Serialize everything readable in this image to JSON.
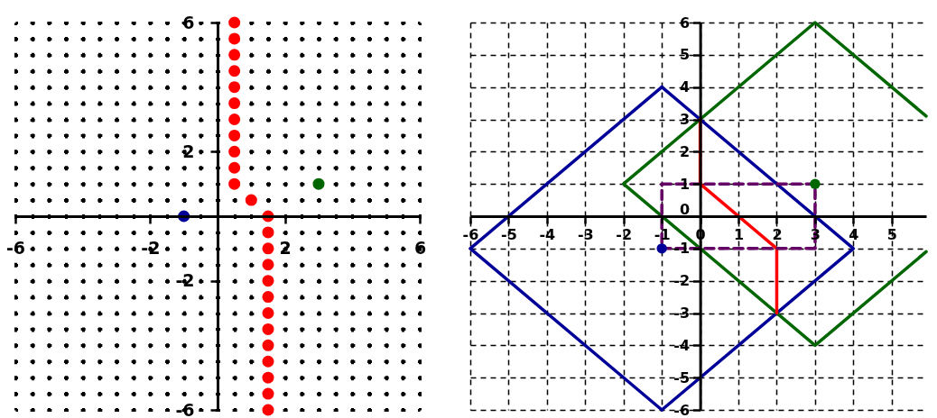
{
  "chart_data": [
    {
      "type": "scatter",
      "xlim": [
        -6,
        6
      ],
      "ylim": [
        -6,
        6
      ],
      "grid": true,
      "marker": "circle",
      "xticks": [
        -6,
        {
          "value": -5.5,
          "label": null
        },
        {
          "value": -5,
          "label": null
        },
        {
          "value": -4.5,
          "label": null
        },
        {
          "value": -4,
          "label": null
        },
        {
          "value": -3.5,
          "label": null
        },
        {
          "value": -3,
          "label": null
        },
        {
          "value": -2.5,
          "label": null
        },
        -2,
        {
          "value": -1.5,
          "label": null
        },
        {
          "value": -1,
          "label": null
        },
        {
          "value": -0.5,
          "label": null
        },
        {
          "value": 0,
          "label": null
        },
        {
          "value": 0.5,
          "label": null
        },
        {
          "value": 1,
          "label": null
        },
        {
          "value": 1.5,
          "label": null
        },
        2,
        {
          "value": 2.5,
          "label": null
        },
        {
          "value": 3,
          "label": null
        },
        {
          "value": 3.5,
          "label": null
        },
        {
          "value": 4,
          "label": null
        },
        {
          "value": 4.5,
          "label": null
        },
        {
          "value": 5,
          "label": null
        },
        {
          "value": 5.5,
          "label": null
        },
        6
      ],
      "yticks": [
        -6,
        {
          "value": -5.5,
          "label": null
        },
        {
          "value": -5,
          "label": null
        },
        {
          "value": -4.5,
          "label": null
        },
        {
          "value": -4,
          "label": null
        },
        {
          "value": -3.5,
          "label": null
        },
        {
          "value": -3,
          "label": null
        },
        {
          "value": -2.5,
          "label": null
        },
        -2,
        {
          "value": -1.5,
          "label": null
        },
        {
          "value": -1,
          "label": null
        },
        {
          "value": -0.5,
          "label": null
        },
        {
          "value": 0,
          "label": null
        },
        {
          "value": 0.5,
          "label": null
        },
        {
          "value": 1,
          "label": null
        },
        {
          "value": 1.5,
          "label": null
        },
        2,
        {
          "value": 2.5,
          "label": null
        },
        {
          "value": 3,
          "label": null
        },
        {
          "value": 3.5,
          "label": null
        },
        {
          "value": 4,
          "label": null
        },
        {
          "value": 4.5,
          "label": null
        },
        {
          "value": 5,
          "label": null
        },
        {
          "value": 5.5,
          "label": null
        },
        6
      ],
      "series": [
        {
          "color": "#ff0000",
          "x": [
            0.5,
            0.5,
            0.5,
            0.5,
            0.5,
            0.5,
            0.5,
            0.5,
            0.5,
            0.5,
            0.5,
            1,
            1.5,
            1.5,
            1.5,
            1.5,
            1.5,
            1.5,
            1.5,
            1.5,
            1.5,
            1.5,
            1.5,
            1.5,
            1.5
          ],
          "values": [
            6,
            5.5,
            5,
            4.5,
            4,
            3.5,
            3,
            2.5,
            2,
            1.5,
            1,
            0.5,
            0,
            -0.5,
            -1,
            -1.5,
            -2,
            -2.5,
            -3,
            -3.5,
            -4,
            -4.5,
            -5,
            -5.5,
            -6
          ]
        },
        {
          "color": "#000099",
          "x": [
            -1
          ],
          "values": [
            0
          ]
        },
        {
          "color": "#006600",
          "x": [
            3
          ],
          "values": [
            1
          ]
        }
      ]
    },
    {
      "type": "line",
      "xlim": [
        -6,
        5.9
      ],
      "ylim": [
        -6,
        6
      ],
      "grid": true,
      "xticks": [
        -6,
        -5,
        -4,
        -3,
        -2,
        -1,
        0,
        1,
        2,
        3,
        4,
        5
      ],
      "yticks": [
        -6,
        -5,
        -4,
        -3,
        -2,
        -1,
        0,
        1,
        2,
        3,
        4,
        5,
        6
      ],
      "series": [
        {
          "color": "#000099",
          "x": [
            -1,
            4,
            -1
          ],
          "values": [
            4,
            -1,
            -6
          ]
        },
        {
          "color": "#000099",
          "x": [
            -1,
            -6,
            -1
          ],
          "values": [
            -6,
            -1,
            4
          ]
        },
        {
          "color": "#006600",
          "x": [
            5.9,
            3,
            -2,
            3,
            5.9
          ],
          "values": [
            -1.1,
            -4,
            1,
            6,
            3.1
          ]
        },
        {
          "color": "#ff0000",
          "x": [
            0,
            0,
            2,
            2
          ],
          "values": [
            3,
            1,
            -1,
            -3
          ]
        },
        {
          "color": "#660066",
          "line_style": "dashed",
          "x": [
            -1,
            3,
            3
          ],
          "values": [
            1,
            1,
            -1
          ]
        },
        {
          "color": "#660066",
          "line_style": "dashed",
          "x": [
            3,
            -1,
            -1
          ],
          "values": [
            -1,
            -1,
            1
          ]
        },
        {
          "type": "scatter",
          "marker": "circle",
          "color": "#000099",
          "x": [
            -1
          ],
          "values": [
            -1
          ]
        },
        {
          "type": "scatter",
          "marker": "circle",
          "color": "#006600",
          "x": [
            3
          ],
          "values": [
            1
          ]
        }
      ]
    }
  ]
}
